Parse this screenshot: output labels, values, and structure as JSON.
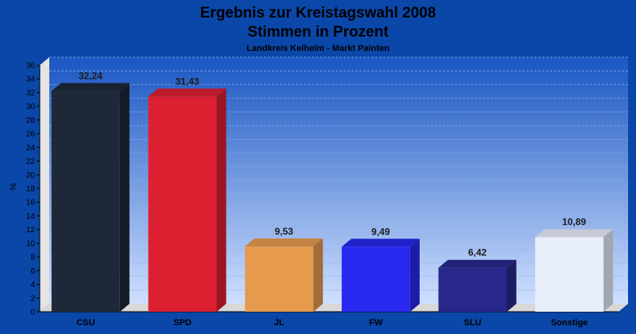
{
  "chart_data": {
    "type": "bar",
    "title": "Ergebnis zur Kreistagswahl 2008",
    "subtitle": "Stimmen in Prozent",
    "caption": "Landkreis Kelheim - Markt Painten",
    "ylabel": "%",
    "xlabel": "",
    "ylim": [
      0,
      36
    ],
    "yticks": [
      0,
      2,
      4,
      6,
      8,
      10,
      12,
      14,
      16,
      18,
      20,
      22,
      24,
      26,
      28,
      30,
      32,
      34,
      36
    ],
    "grid": true,
    "categories": [
      "CSU",
      "SPD",
      "JL",
      "FW",
      "SLU",
      "Sonstige"
    ],
    "values": [
      32.24,
      31.43,
      9.53,
      9.49,
      6.42,
      10.89
    ],
    "value_labels": [
      "32,24",
      "31,43",
      "9,53",
      "9,49",
      "6,42",
      "10,89"
    ],
    "colors": [
      "#1e2838",
      "#dc2032",
      "#e69a4e",
      "#2828f0",
      "#28288c",
      "#e8eefa"
    ],
    "background": "#0a47a8"
  }
}
